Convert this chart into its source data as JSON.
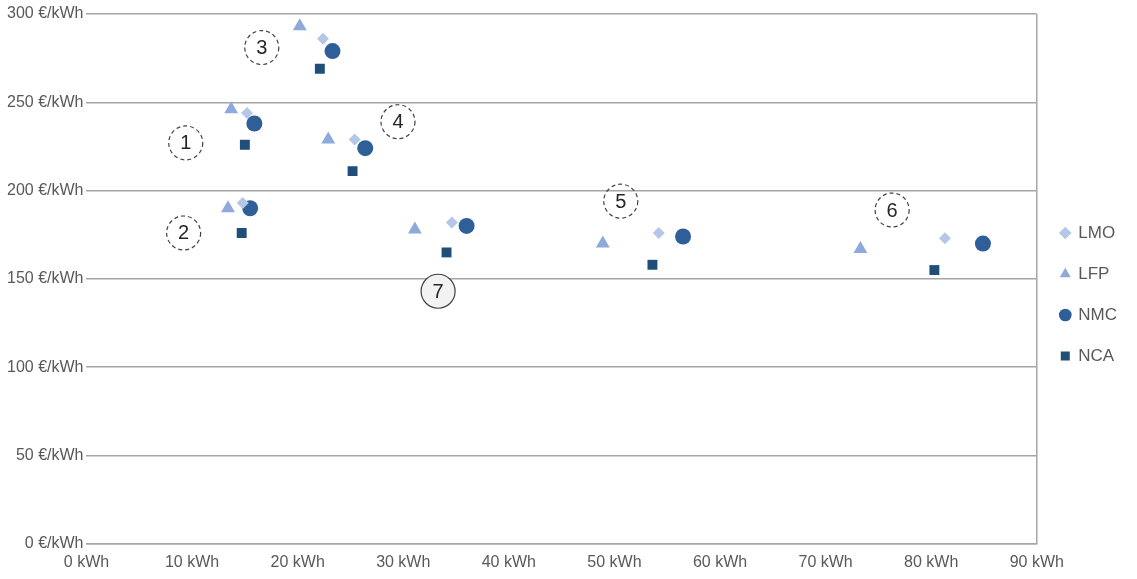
{
  "chart_data": {
    "type": "scatter",
    "xlim": [
      0,
      90
    ],
    "xticks": [
      {
        "value": 0,
        "label": "0 kWh"
      },
      {
        "value": 10,
        "label": "10 kWh"
      },
      {
        "value": 20,
        "label": "20 kWh"
      },
      {
        "value": 30,
        "label": "30 kWh"
      },
      {
        "value": 40,
        "label": "40 kWh"
      },
      {
        "value": 50,
        "label": "50 kWh"
      },
      {
        "value": 60,
        "label": "60 kWh"
      },
      {
        "value": 70,
        "label": "70 kWh"
      },
      {
        "value": 80,
        "label": "80 kWh"
      },
      {
        "value": 90,
        "label": "90 kWh"
      }
    ],
    "ylim": [
      0,
      300
    ],
    "yticks": [
      {
        "value": 0,
        "label": "0 €/kWh"
      },
      {
        "value": 50,
        "label": "50 €/kWh"
      },
      {
        "value": 100,
        "label": "100 €/kWh"
      },
      {
        "value": 150,
        "label": "150 €/kWh"
      },
      {
        "value": 200,
        "label": "200 €/kWh"
      },
      {
        "value": 250,
        "label": "250 €/kWh"
      },
      {
        "value": 300,
        "label": "300 €/kWh"
      }
    ],
    "grid": "y",
    "legend": "right",
    "series": [
      {
        "name": "LMO",
        "color": "#b4c7e7",
        "marker": "diamond",
        "x": [
          22.4,
          15.2,
          25.4,
          14.8,
          34.6,
          54.2,
          81.3
        ],
        "values": [
          286,
          244,
          229,
          193,
          182,
          176,
          173
        ]
      },
      {
        "name": "LFP",
        "color": "#8eaadb",
        "marker": "triangle",
        "x": [
          20.2,
          13.7,
          22.9,
          13.4,
          31.1,
          48.9,
          73.3
        ],
        "values": [
          293,
          246,
          229,
          190,
          178,
          170,
          167
        ]
      },
      {
        "name": "NMC",
        "color": "#2f5f98",
        "marker": "circle",
        "x": [
          23.3,
          15.9,
          26.4,
          15.5,
          36.0,
          56.5,
          84.9
        ],
        "values": [
          279,
          238,
          224,
          190,
          180,
          174,
          170
        ]
      },
      {
        "name": "NCA",
        "color": "#1f4e79",
        "marker": "square",
        "x": [
          22.1,
          15.0,
          25.2,
          14.7,
          34.1,
          53.6,
          80.3
        ],
        "values": [
          269,
          226,
          211,
          176,
          165,
          158,
          155
        ]
      }
    ],
    "annotations": [
      {
        "text": "1",
        "x": 9.4,
        "y": 227
      },
      {
        "text": "2",
        "x": 9.2,
        "y": 176
      },
      {
        "text": "3",
        "x": 16.6,
        "y": 281
      },
      {
        "text": "4",
        "x": 29.5,
        "y": 239
      },
      {
        "text": "5",
        "x": 50.6,
        "y": 194
      },
      {
        "text": "6",
        "x": 76.3,
        "y": 189
      },
      {
        "text": "7",
        "x": 33.3,
        "y": 143
      }
    ]
  }
}
